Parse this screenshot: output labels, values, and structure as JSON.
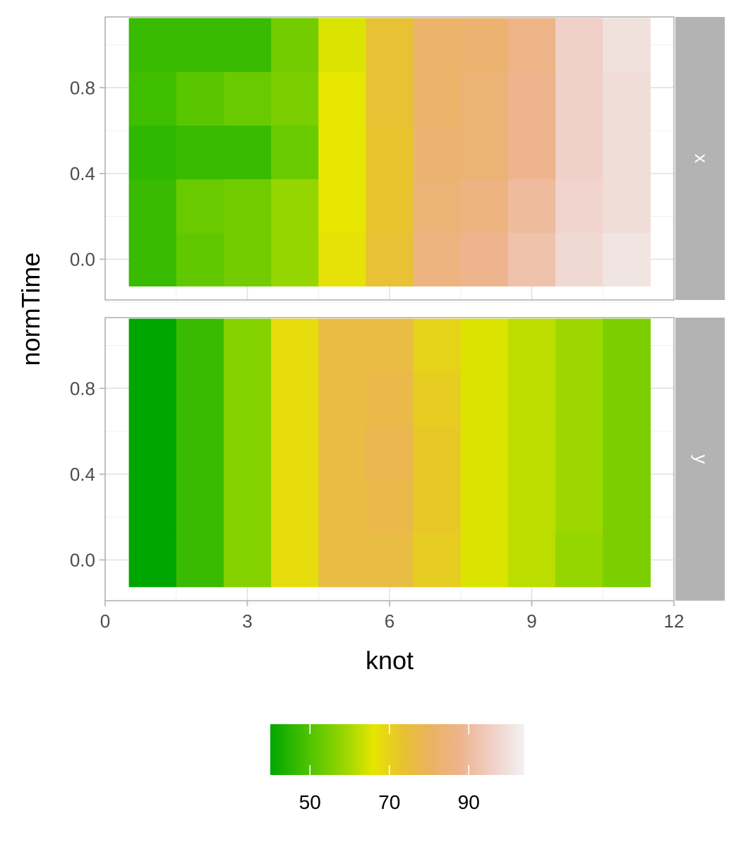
{
  "chart_data": {
    "type": "heatmap",
    "xlabel": "knot",
    "ylabel": "normTime",
    "x": [
      1,
      2,
      3,
      4,
      5,
      6,
      7,
      8,
      9,
      10,
      11
    ],
    "y": [
      0.0,
      0.25,
      0.5,
      0.75,
      1.0
    ],
    "xlim": [
      0,
      12
    ],
    "ylim": [
      -0.19,
      1.13
    ],
    "xticks": [
      "0",
      "3",
      "6",
      "9",
      "12"
    ],
    "yticks": [
      "0.0",
      "0.4",
      "0.8"
    ],
    "grid": true,
    "panels": [
      {
        "strip_label": "x",
        "values": [
          [
            47,
            52,
            54,
            58,
            67,
            74,
            86,
            88,
            92,
            98,
            101
          ],
          [
            47,
            53,
            54,
            58,
            66,
            73,
            84,
            86,
            90,
            97,
            99
          ],
          [
            46,
            47,
            47,
            53,
            66,
            73,
            83,
            84,
            88,
            96,
            99
          ],
          [
            48,
            51,
            53,
            55,
            66,
            74,
            82,
            84,
            88,
            96,
            99
          ],
          [
            47,
            47,
            47,
            54,
            65,
            74,
            82,
            83,
            87,
            96,
            100
          ]
        ]
      },
      {
        "strip_label": "y",
        "values": [
          [
            40,
            47,
            56,
            68,
            76,
            76,
            71,
            65,
            62,
            58,
            55
          ],
          [
            40,
            47,
            56,
            68,
            76,
            77,
            72,
            65,
            62,
            59,
            55
          ],
          [
            40,
            47,
            56,
            68,
            76,
            78,
            72,
            65,
            62,
            59,
            55
          ],
          [
            40,
            47,
            56,
            68,
            76,
            77,
            71,
            65,
            62,
            59,
            55
          ],
          [
            40,
            47,
            56,
            68,
            76,
            76,
            70,
            65,
            62,
            59,
            55
          ]
        ]
      }
    ],
    "legend": {
      "position": "bottom",
      "range": [
        40,
        104
      ],
      "breaks": [
        50,
        70,
        90
      ],
      "labels": [
        "50",
        "70",
        "90"
      ],
      "colors": [
        {
          "v": 40,
          "c": "#00a600"
        },
        {
          "v": 50,
          "c": "#50c400"
        },
        {
          "v": 60,
          "c": "#a6d900"
        },
        {
          "v": 66,
          "c": "#e6e600"
        },
        {
          "v": 73,
          "c": "#e8c32e"
        },
        {
          "v": 80,
          "c": "#ebb25e"
        },
        {
          "v": 88,
          "c": "#edb48e"
        },
        {
          "v": 96,
          "c": "#f0d0c8"
        },
        {
          "v": 104,
          "c": "#f2f2f2"
        }
      ]
    }
  }
}
